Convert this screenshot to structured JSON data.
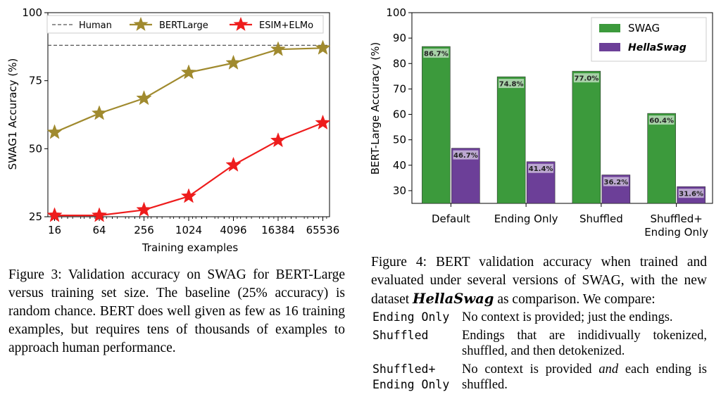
{
  "chart_data": [
    {
      "type": "line",
      "ylabel": "SWAG1 Accuracy (%)",
      "xlabel": "Training examples",
      "x_scale": "log2",
      "ylim": [
        25,
        100
      ],
      "y_ticks": [
        "25",
        "50",
        "75",
        "100"
      ],
      "x": [
        16,
        64,
        256,
        1024,
        4096,
        16384,
        65536
      ],
      "x_ticks": [
        "16",
        "64",
        "256",
        "1024",
        "4096",
        "16384",
        "65536"
      ],
      "legend_placement": "top",
      "series": [
        {
          "name": "Human",
          "style": "dashed",
          "color": "#555555",
          "values": [
            88,
            88,
            88,
            88,
            88,
            88,
            88
          ]
        },
        {
          "name": "BERTLarge",
          "marker": "star",
          "color": "#a08a2e",
          "values": [
            56,
            63,
            68.5,
            78,
            81.5,
            86.5,
            87
          ]
        },
        {
          "name": "ESIM+ELMo",
          "marker": "star",
          "color": "#ee1c1c",
          "values": [
            25.5,
            25.5,
            27.5,
            32.5,
            44,
            53,
            59.5
          ]
        }
      ]
    },
    {
      "type": "bar",
      "ylabel": "BERT-Large Accuracy (%)",
      "ylim": [
        25,
        100
      ],
      "y_ticks": [
        "30",
        "40",
        "50",
        "60",
        "70",
        "80",
        "90",
        "100"
      ],
      "categories": [
        "Default",
        "Ending Only",
        "Shuffled",
        "Shuffled+\nEnding Only"
      ],
      "legend_placement": "top-right",
      "series": [
        {
          "name": "SWAG",
          "color": "#3c9a3c",
          "values": [
            86.7,
            74.8,
            77.0,
            60.4
          ],
          "labels": [
            "86.7%",
            "74.8%",
            "77.0%",
            "60.4%"
          ]
        },
        {
          "name": "HellaSwag",
          "color": "#6c3f98",
          "values": [
            46.7,
            41.4,
            36.2,
            31.6
          ],
          "labels": [
            "46.7%",
            "41.4%",
            "36.2%",
            "31.6%"
          ]
        }
      ]
    }
  ],
  "captions": {
    "fig3": "Figure 3: Validation accuracy on SWAG for BERT-Large versus training set size. The baseline (25% accuracy) is random chance. BERT does well given as few as 16 training examples, but requires tens of thousands of examples to approach human performance.",
    "fig4_before": "Figure 4: BERT validation accuracy when trained and evaluated under several versions of SWAG, with the new dataset ",
    "fig4_dataset": "HellaSwag",
    "fig4_after": " as comparison. We compare:"
  },
  "definitions": [
    {
      "term": "Ending Only",
      "desc": "No context is provided; just the endings."
    },
    {
      "term": "Shuffled",
      "desc": "Endings that are indidivually tokenized, shuffled, and then detokenized."
    },
    {
      "term": "Shuffled+\nEnding Only",
      "desc_before": "No context is provided ",
      "desc_em": "and",
      "desc_after": " each ending is shuffled."
    }
  ]
}
